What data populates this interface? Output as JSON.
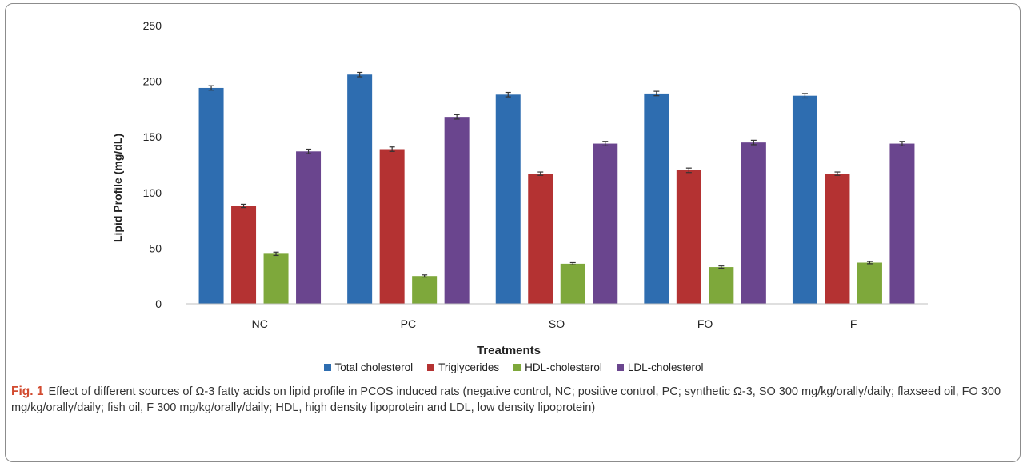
{
  "chart_data": {
    "type": "bar",
    "title": "",
    "xlabel": "Treatments",
    "ylabel": "Lipid Profile (mg/dL)",
    "ylim": [
      0,
      250
    ],
    "yticks": [
      0,
      50,
      100,
      150,
      200,
      250
    ],
    "grid": false,
    "legend_position": "bottom",
    "error_bars": true,
    "categories": [
      "NC",
      "PC",
      "SO",
      "FO",
      "F"
    ],
    "series": [
      {
        "name": "Total cholesterol",
        "color": "#2e6db0",
        "values": [
          194,
          206,
          188,
          189,
          187
        ],
        "errors": [
          2,
          2,
          2,
          2,
          2
        ]
      },
      {
        "name": "Triglycerides",
        "color": "#b43232",
        "values": [
          88,
          139,
          117,
          120,
          117
        ],
        "errors": [
          1.5,
          2,
          1.5,
          2,
          1.5
        ]
      },
      {
        "name": "HDL-cholesterol",
        "color": "#7ea83b",
        "values": [
          45,
          25,
          36,
          33,
          37
        ],
        "errors": [
          1.5,
          1,
          1,
          1,
          1
        ]
      },
      {
        "name": "LDL-cholesterol",
        "color": "#6a458e",
        "values": [
          137,
          168,
          144,
          145,
          144
        ],
        "errors": [
          2,
          2,
          2,
          2,
          2
        ]
      }
    ]
  },
  "caption": {
    "label": "Fig. 1",
    "text": "Effect of different sources of Ω-3 fatty acids on lipid profile in PCOS induced rats (negative control, NC; positive control, PC; synthetic Ω-3, SO 300 mg/kg/orally/daily; flaxseed oil, FO 300 mg/kg/orally/daily; fish oil, F 300 mg/kg/orally/daily; HDL, high density lipoprotein and LDL, low density lipoprotein)"
  }
}
